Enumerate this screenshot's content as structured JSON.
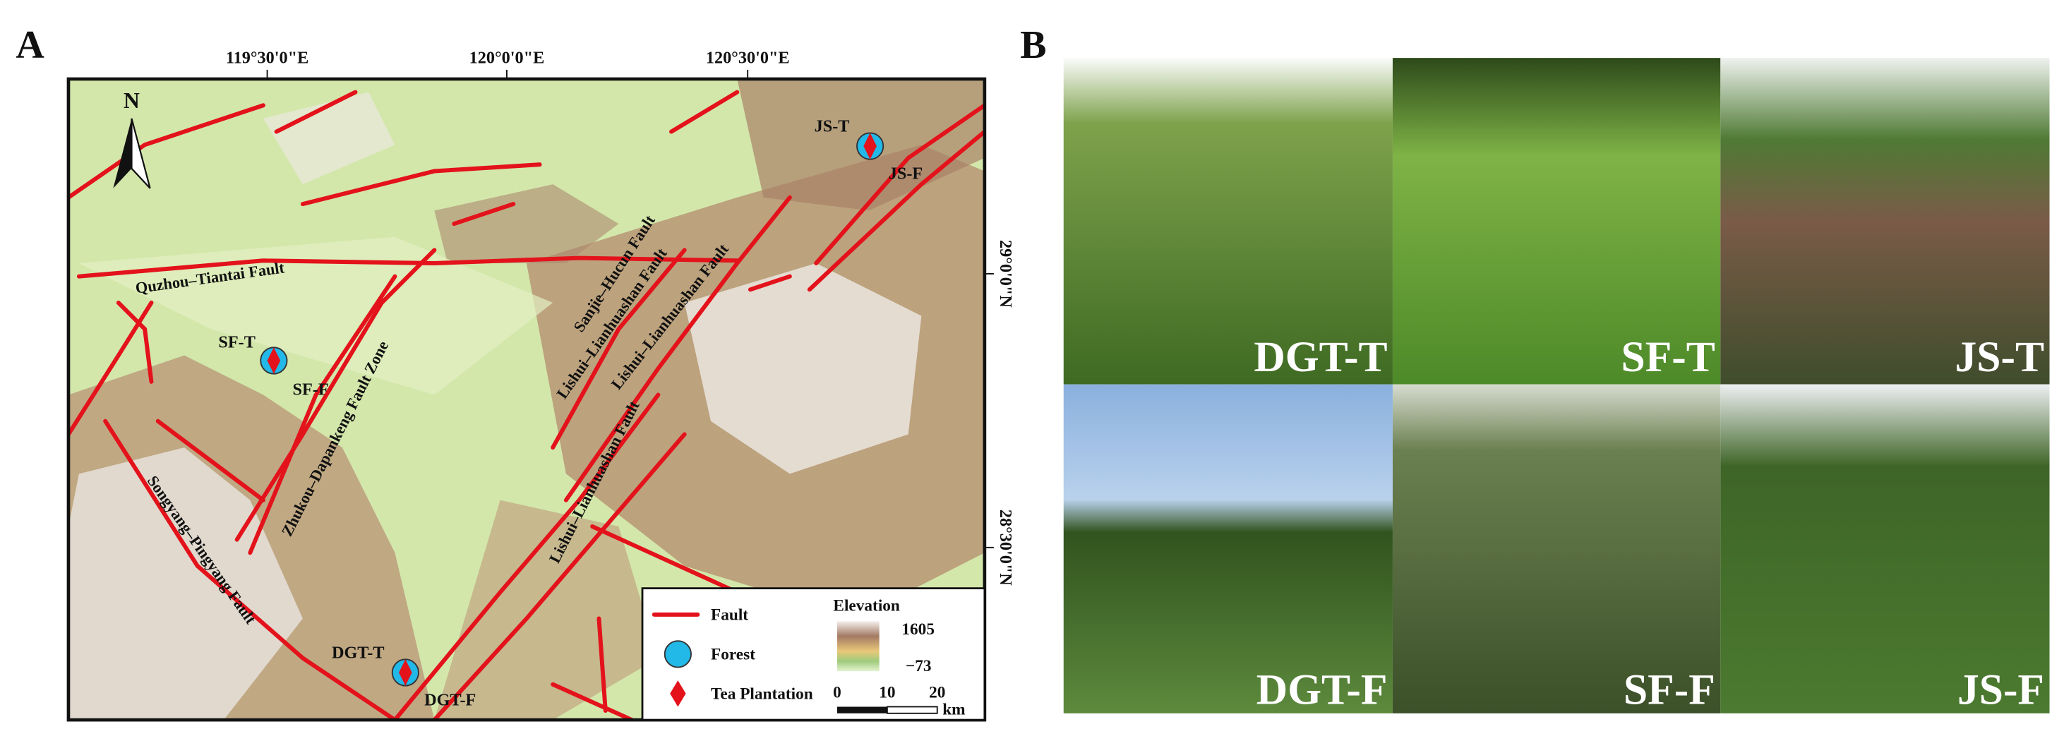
{
  "panel_a": {
    "label": "A",
    "north": "N",
    "lon_labels": [
      "119°30'0\"E",
      "120°0'0\"E",
      "120°30'0\"E"
    ],
    "lat_labels": [
      "29°0'0\"N",
      "28°30'0\"N"
    ],
    "fault_labels": [
      "Quzhou–Tiantai Fault",
      "Sanjie–Hucun Fault",
      "Lishui–Lianhuashan Fault",
      "Lishui–Lianhuashan Fault",
      "Zhukou–Dapankeng Fault Zone",
      "Songyang–Pingyang Fault",
      "Lishui–Lianhuashan Fault"
    ],
    "sites": [
      {
        "tea": "JS-T",
        "forest": "JS-F"
      },
      {
        "tea": "SF-T",
        "forest": "SF-F"
      },
      {
        "tea": "DGT-T",
        "forest": "DGT-F"
      }
    ],
    "legend": {
      "items": [
        "Fault",
        "Forest",
        "Tea Plantation"
      ],
      "elevation_title": "Elevation",
      "elevation_max": "1605",
      "elevation_min": "−73",
      "scale_ticks": [
        "0",
        "10",
        "20"
      ],
      "scale_unit": "km"
    }
  },
  "panel_b": {
    "label": "B",
    "photos": [
      "DGT-T",
      "SF-T",
      "JS-T",
      "DGT-F",
      "SF-F",
      "JS-F"
    ]
  }
}
